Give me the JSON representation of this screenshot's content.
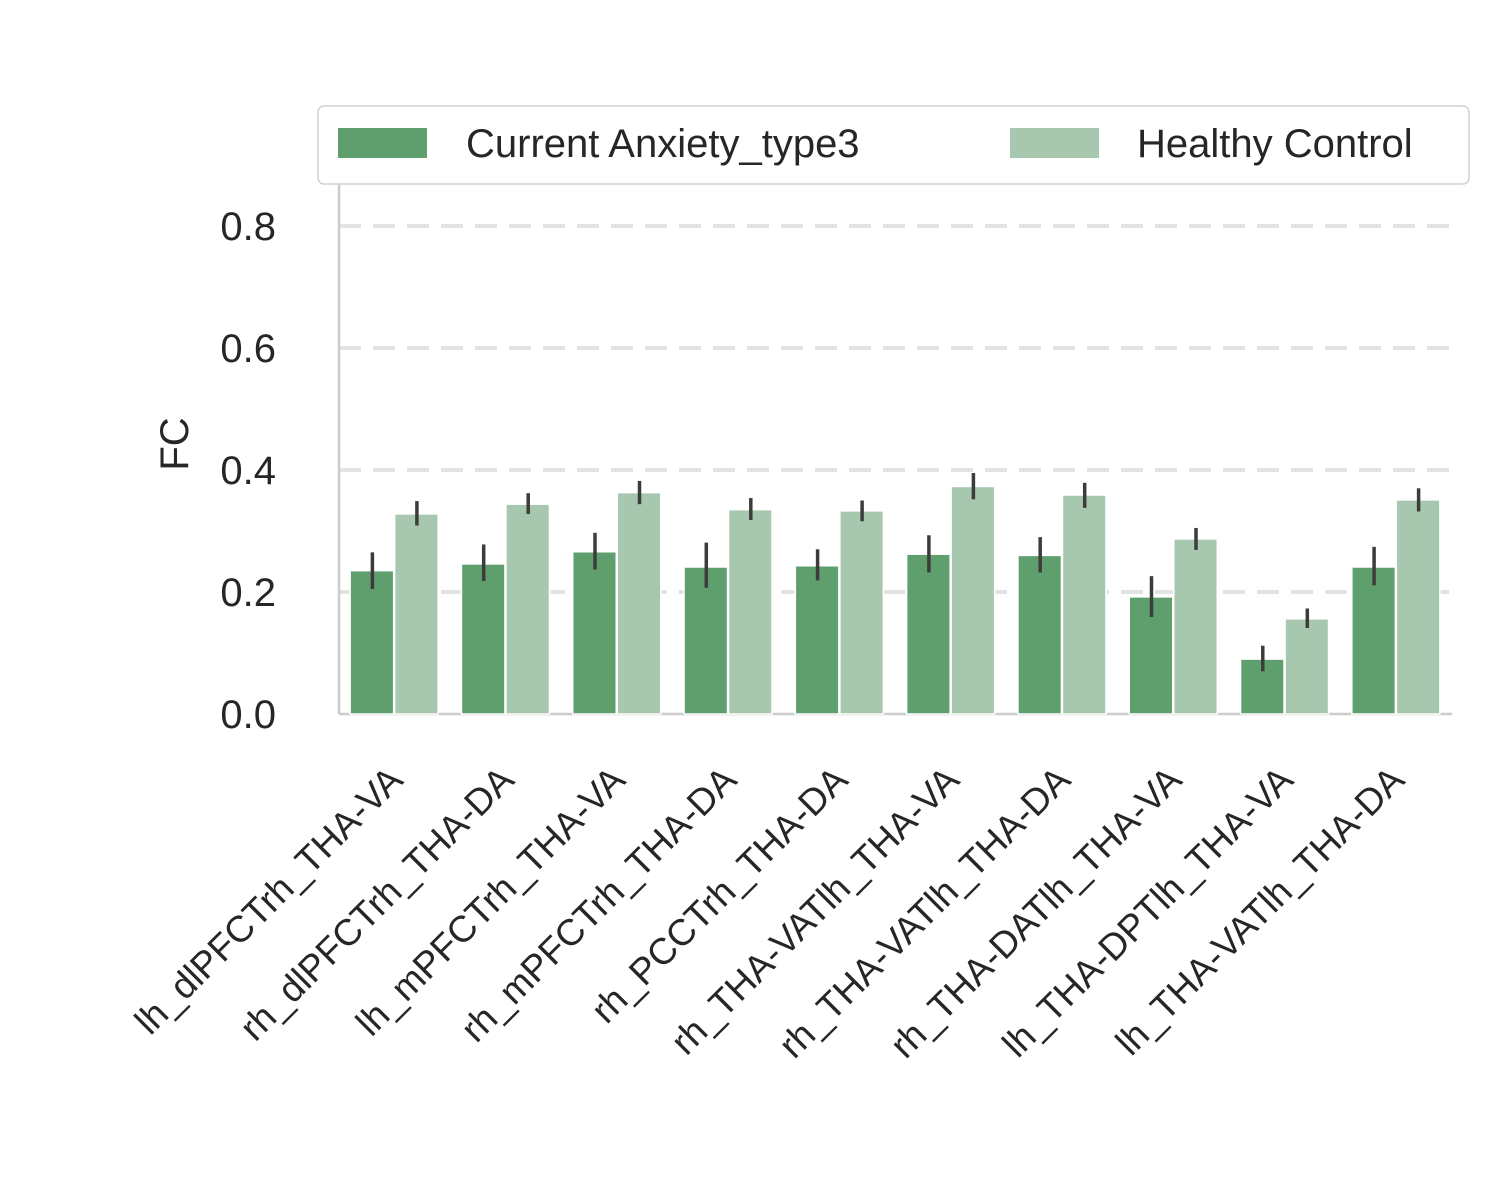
{
  "chart_data": {
    "type": "bar",
    "title": "",
    "xlabel": "",
    "ylabel": "FC",
    "ylim": [
      0,
      0.9
    ],
    "yticks": [
      0.0,
      0.2,
      0.4,
      0.6,
      0.8
    ],
    "ytick_labels": [
      "0.0",
      "0.2",
      "0.4",
      "0.6",
      "0.8"
    ],
    "grid": "horizontal dashed",
    "legend_placement": "top",
    "categories": [
      "lh_dlPFCTrh_THA-VA",
      "rh_dlPFCTrh_THA-DA",
      "lh_mPFCTrh_THA-VA",
      "rh_mPFCTrh_THA-DA",
      "rh_PCCTrh_THA-DA",
      "rh_THA-VATlh_THA-VA",
      "rh_THA-VATlh_THA-DA",
      "rh_THA-DATlh_THA-VA",
      "lh_THA-DPTlh_THA-VA",
      "lh_THA-VATlh_THA-DA"
    ],
    "series": [
      {
        "name": "Current Anxiety_type3",
        "color": "#5f9f6e",
        "values": [
          0.235,
          0.246,
          0.266,
          0.241,
          0.243,
          0.262,
          0.26,
          0.192,
          0.09,
          0.241
        ],
        "error_low": [
          0.205,
          0.218,
          0.237,
          0.207,
          0.219,
          0.232,
          0.232,
          0.159,
          0.07,
          0.211
        ],
        "error_high": [
          0.265,
          0.278,
          0.297,
          0.281,
          0.27,
          0.293,
          0.29,
          0.226,
          0.112,
          0.274
        ]
      },
      {
        "name": "Healthy Control",
        "color": "#a7c8ae",
        "values": [
          0.328,
          0.344,
          0.363,
          0.335,
          0.333,
          0.373,
          0.359,
          0.287,
          0.156,
          0.351
        ],
        "error_low": [
          0.309,
          0.328,
          0.344,
          0.318,
          0.316,
          0.352,
          0.338,
          0.269,
          0.141,
          0.332
        ],
        "error_high": [
          0.349,
          0.362,
          0.382,
          0.354,
          0.35,
          0.395,
          0.379,
          0.305,
          0.173,
          0.37
        ]
      }
    ]
  }
}
